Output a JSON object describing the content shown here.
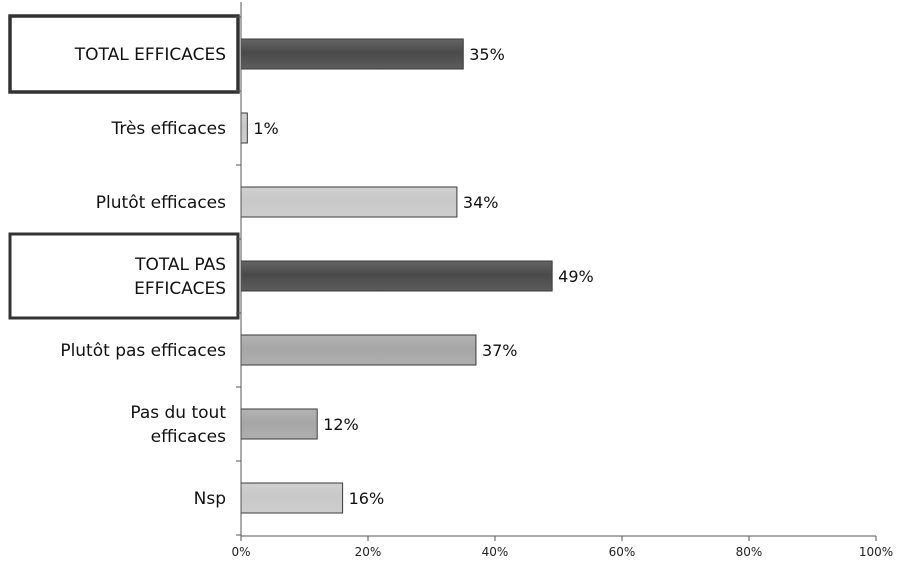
{
  "chart_data": {
    "type": "bar",
    "orientation": "horizontal",
    "title": "",
    "xlabel": "",
    "ylabel": "",
    "xlim": [
      0,
      100
    ],
    "grid": false,
    "categories": [
      "TOTAL EFFICACES",
      "Très efficaces",
      "Plutôt efficaces",
      "TOTAL PAS EFFICACES",
      "Plutôt pas efficaces",
      "Pas du tout efficaces",
      "Nsp"
    ],
    "category_lines": [
      [
        "TOTAL EFFICACES"
      ],
      [
        "Très efficaces"
      ],
      [
        "Plutôt efficaces"
      ],
      [
        "TOTAL PAS",
        "EFFICACES"
      ],
      [
        "Plutôt pas efficaces"
      ],
      [
        "Pas du tout",
        "efficaces"
      ],
      [
        "Nsp"
      ]
    ],
    "values": [
      35,
      1,
      34,
      49,
      37,
      12,
      16
    ],
    "value_labels": [
      "35%",
      "1%",
      "34%",
      "49%",
      "37%",
      "12%",
      "16%"
    ],
    "boxed_categories": [
      "TOTAL EFFICACES",
      "TOTAL PAS EFFICACES"
    ],
    "bar_colors": [
      "#4a4a4a",
      "#c8c8c8",
      "#c8c8c8",
      "#4a4a4a",
      "#a6a6a6",
      "#a6a6a6",
      "#c8c8c8"
    ],
    "x_ticks": [
      0,
      20,
      40,
      60,
      80,
      100
    ],
    "x_tick_labels": [
      "0%",
      "20%",
      "40%",
      "60%",
      "80%",
      "100%"
    ]
  }
}
